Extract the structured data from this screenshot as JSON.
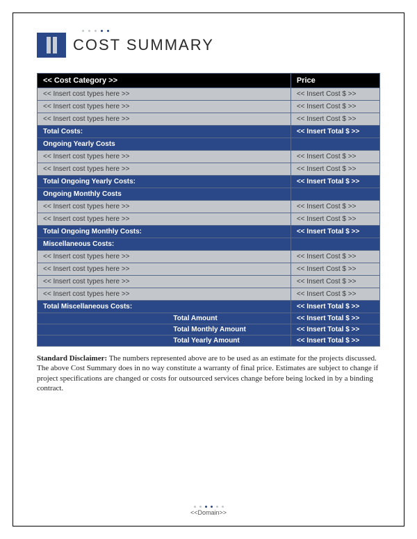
{
  "header": {
    "title": "COST SUMMARY",
    "dot_colors": [
      "#c3c7cc",
      "#c3c7cc",
      "#c3c7cc",
      "#c3c7cc",
      "#2a4788",
      "#2a4788"
    ]
  },
  "table": {
    "header_category": "<< Cost Category >>",
    "header_price": "Price",
    "placeholder_type": "<< Insert cost types here >>",
    "placeholder_cost": "<< Insert Cost $ >>",
    "placeholder_total": "<< Insert Total $ >>",
    "section1": {
      "row_count": 3,
      "total_label": "Total Costs:"
    },
    "section2": {
      "heading": "Ongoing Yearly Costs",
      "row_count": 2,
      "total_label": "Total Ongoing Yearly Costs:"
    },
    "section3": {
      "heading": "Ongoing Monthly Costs",
      "row_count": 2,
      "total_label": "Total Ongoing Monthly Costs:"
    },
    "section4": {
      "heading": "Miscellaneous Costs:",
      "row_count": 4,
      "total_label": "Total Miscellaneous Costs:"
    },
    "summary": {
      "rows": [
        {
          "label": "Total Amount"
        },
        {
          "label": "Total Monthly Amount"
        },
        {
          "label": "Total Yearly Amount"
        }
      ]
    }
  },
  "disclaimer": {
    "heading": "Standard Disclaimer:",
    "body": " The numbers represented above are to be used as an estimate for the projects discussed. The above Cost Summary does in no way constitute a warranty of final price. Estimates are subject to change if project specifications are changed or costs for outsourced services change before being locked in by a binding contract."
  },
  "footer": {
    "text": "<<Domain>>",
    "dot_colors": [
      "#c3c7cc",
      "#c3c7cc",
      "#2a4788",
      "#2a4788",
      "#c3c7cc",
      "#c3c7cc"
    ]
  },
  "colors": {
    "brand_blue": "#2a4788",
    "gray_fill": "#c3c7cc",
    "black": "#000000",
    "white": "#ffffff"
  }
}
